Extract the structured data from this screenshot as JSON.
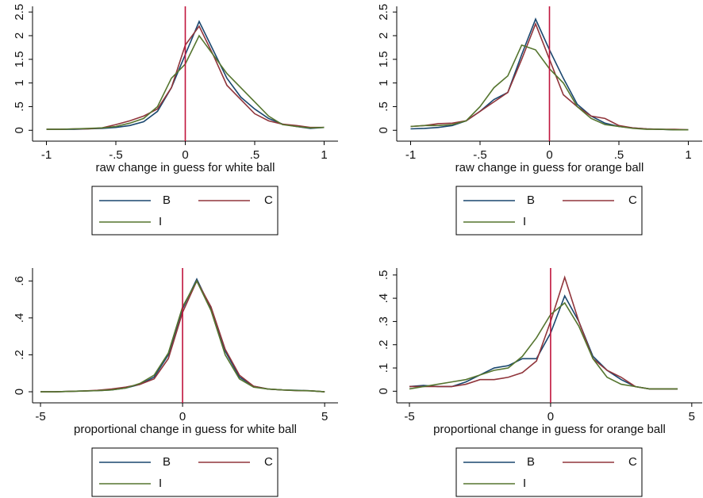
{
  "chart_data": [
    {
      "type": "line",
      "x_label": "raw change in guess for white ball",
      "x": [
        -1,
        -0.9,
        -0.8,
        -0.7,
        -0.6,
        -0.5,
        -0.4,
        -0.3,
        -0.2,
        -0.1,
        0,
        0.1,
        0.2,
        0.3,
        0.4,
        0.5,
        0.6,
        0.7,
        0.8,
        0.9,
        1
      ],
      "series": [
        {
          "name": "B",
          "color": "#1a476f",
          "values": [
            0.02,
            0.02,
            0.02,
            0.03,
            0.04,
            0.06,
            0.1,
            0.18,
            0.4,
            0.9,
            1.6,
            2.3,
            1.7,
            1.1,
            0.7,
            0.45,
            0.25,
            0.13,
            0.08,
            0.04,
            0.06
          ]
        },
        {
          "name": "C",
          "color": "#90353b",
          "values": [
            0.02,
            0.02,
            0.03,
            0.03,
            0.05,
            0.12,
            0.2,
            0.3,
            0.45,
            0.9,
            1.8,
            2.2,
            1.6,
            0.95,
            0.65,
            0.35,
            0.2,
            0.13,
            0.1,
            0.06,
            0.06
          ]
        },
        {
          "name": "I",
          "color": "#55752f",
          "values": [
            0.02,
            0.02,
            0.03,
            0.04,
            0.05,
            0.08,
            0.15,
            0.25,
            0.5,
            1.1,
            1.4,
            2.0,
            1.6,
            1.2,
            0.9,
            0.6,
            0.3,
            0.12,
            0.08,
            0.05,
            0.06
          ]
        }
      ],
      "xlim": [
        -1.1,
        1.1
      ],
      "ylim": [
        -0.23,
        2.62
      ],
      "xticks": [
        -1,
        {
          "value": -0.5,
          "label": "-.5"
        },
        0,
        {
          "value": 0.5,
          "label": ".5"
        },
        1
      ],
      "yticks": [
        0,
        {
          "value": 0.5,
          "label": ".5"
        },
        1,
        1.5,
        2,
        2.5
      ],
      "xline": 0,
      "xline_color": "#c0143c"
    },
    {
      "type": "line",
      "x_label": "raw change in guess for orange ball",
      "x": [
        -1,
        -0.9,
        -0.8,
        -0.7,
        -0.6,
        -0.5,
        -0.4,
        -0.3,
        -0.2,
        -0.1,
        0,
        0.1,
        0.2,
        0.3,
        0.4,
        0.5,
        0.6,
        0.7,
        0.8,
        0.9,
        1
      ],
      "series": [
        {
          "name": "B",
          "color": "#1a476f",
          "values": [
            0.03,
            0.04,
            0.06,
            0.1,
            0.2,
            0.4,
            0.65,
            0.8,
            1.6,
            2.35,
            1.7,
            1.1,
            0.55,
            0.3,
            0.15,
            0.08,
            0.05,
            0.03,
            0.02,
            0.01,
            0.01
          ]
        },
        {
          "name": "C",
          "color": "#90353b",
          "values": [
            0.08,
            0.1,
            0.14,
            0.15,
            0.2,
            0.4,
            0.6,
            0.8,
            1.5,
            2.25,
            1.5,
            0.75,
            0.5,
            0.3,
            0.25,
            0.1,
            0.05,
            0.03,
            0.02,
            0.02,
            0.01
          ]
        },
        {
          "name": "I",
          "color": "#55752f",
          "values": [
            0.08,
            0.1,
            0.1,
            0.12,
            0.2,
            0.5,
            0.9,
            1.15,
            1.8,
            1.7,
            1.3,
            1.0,
            0.5,
            0.25,
            0.12,
            0.08,
            0.04,
            0.02,
            0.02,
            0.01,
            0.01
          ]
        }
      ],
      "xlim": [
        -1.1,
        1.1
      ],
      "ylim": [
        -0.23,
        2.62
      ],
      "xticks": [
        -1,
        {
          "value": -0.5,
          "label": "-.5"
        },
        0,
        {
          "value": 0.5,
          "label": ".5"
        },
        1
      ],
      "yticks": [
        0,
        {
          "value": 0.5,
          "label": ".5"
        },
        1,
        1.5,
        2,
        2.5
      ],
      "xline": 0,
      "xline_color": "#c0143c"
    },
    {
      "type": "line",
      "x_label": "proportional change in guess for white ball",
      "x": [
        -5,
        -4.5,
        -4,
        -3.5,
        -3,
        -2.5,
        -2,
        -1.5,
        -1,
        -0.5,
        0,
        0.5,
        1,
        1.5,
        2,
        2.5,
        3,
        3.5,
        4,
        4.5,
        5
      ],
      "series": [
        {
          "name": "B",
          "color": "#1a476f",
          "values": [
            0,
            0,
            0.002,
            0.004,
            0.006,
            0.01,
            0.02,
            0.04,
            0.08,
            0.2,
            0.45,
            0.61,
            0.45,
            0.22,
            0.08,
            0.03,
            0.015,
            0.01,
            0.008,
            0.005,
            0
          ]
        },
        {
          "name": "C",
          "color": "#90353b",
          "values": [
            0,
            0,
            0.002,
            0.004,
            0.008,
            0.015,
            0.025,
            0.04,
            0.07,
            0.18,
            0.43,
            0.6,
            0.46,
            0.23,
            0.09,
            0.03,
            0.015,
            0.01,
            0.006,
            0.005,
            0
          ]
        },
        {
          "name": "I",
          "color": "#55752f",
          "values": [
            0,
            0,
            0.002,
            0.004,
            0.006,
            0.01,
            0.02,
            0.045,
            0.09,
            0.21,
            0.46,
            0.6,
            0.44,
            0.2,
            0.07,
            0.025,
            0.015,
            0.01,
            0.007,
            0.005,
            0
          ]
        }
      ],
      "xlim": [
        -5.28,
        5.47
      ],
      "ylim": [
        -0.06,
        0.67
      ],
      "xticks": [
        -5,
        0,
        5
      ],
      "yticks": [
        0,
        {
          "value": 0.2,
          "label": ".2"
        },
        {
          "value": 0.4,
          "label": ".4"
        },
        {
          "value": 0.6,
          "label": ".6"
        }
      ],
      "xline": 0,
      "xline_color": "#c0143c"
    },
    {
      "type": "line",
      "x_label": "proportional change in guess for orange ball",
      "x": [
        -5,
        -4.5,
        -4,
        -3.5,
        -3,
        -2.5,
        -2,
        -1.5,
        -1,
        -0.5,
        0,
        0.5,
        1,
        1.5,
        2,
        2.5,
        3,
        3.5,
        4,
        4.5
      ],
      "series": [
        {
          "name": "B",
          "color": "#1a476f",
          "values": [
            0.02,
            0.025,
            0.02,
            0.02,
            0.04,
            0.07,
            0.1,
            0.11,
            0.14,
            0.14,
            0.25,
            0.41,
            0.3,
            0.15,
            0.09,
            0.05,
            0.02,
            0.01,
            0.01,
            0.01
          ]
        },
        {
          "name": "C",
          "color": "#90353b",
          "values": [
            0.02,
            0.02,
            0.02,
            0.02,
            0.03,
            0.05,
            0.05,
            0.06,
            0.08,
            0.13,
            0.3,
            0.49,
            0.3,
            0.14,
            0.09,
            0.06,
            0.02,
            0.01,
            0.01,
            0.01
          ]
        },
        {
          "name": "I",
          "color": "#55752f",
          "values": [
            0.01,
            0.02,
            0.03,
            0.04,
            0.05,
            0.07,
            0.09,
            0.1,
            0.15,
            0.23,
            0.33,
            0.38,
            0.28,
            0.14,
            0.06,
            0.03,
            0.02,
            0.01,
            0.01,
            0.01
          ]
        }
      ],
      "xlim": [
        -5.45,
        5.37
      ],
      "ylim": [
        -0.05,
        0.53
      ],
      "xticks": [
        -5,
        0,
        5
      ],
      "yticks": [
        0,
        {
          "value": 0.1,
          "label": ".1"
        },
        {
          "value": 0.2,
          "label": ".2"
        },
        {
          "value": 0.3,
          "label": ".3"
        },
        {
          "value": 0.4,
          "label": ".4"
        },
        {
          "value": 0.5,
          "label": ".5"
        }
      ],
      "xline": 0,
      "xline_color": "#c0143c"
    }
  ]
}
